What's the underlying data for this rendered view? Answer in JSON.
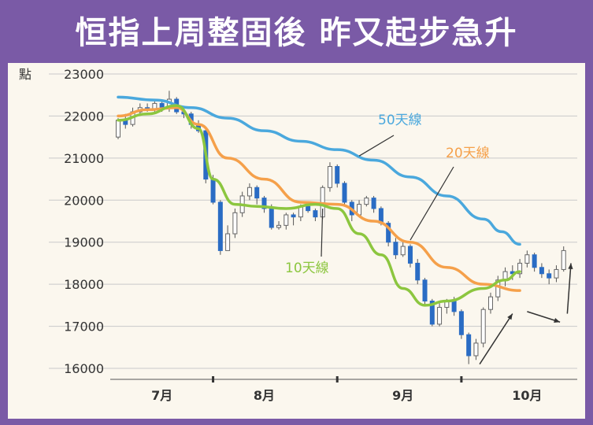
{
  "title": "恒指上周整固後 昨又起步急升",
  "colors": {
    "frame": "#7a5aa6",
    "panel": "#fbf7ee",
    "ma50": "#4aa8dd",
    "ma20": "#f5a04a",
    "ma10": "#8cc63f",
    "candle_up": "#ffffff",
    "candle_down": "#2a6cc4",
    "grid": "#c9c9c9"
  },
  "chart_data": {
    "type": "line",
    "y_unit": "點",
    "ylim": [
      16000,
      23000
    ],
    "yticks": [
      "23000",
      "22000",
      "21000",
      "20000",
      "19000",
      "18000",
      "17000",
      "16000"
    ],
    "x_ticks": [
      "7月",
      "8月",
      "9月",
      "10月"
    ],
    "grid": true,
    "series": [
      {
        "name": "50天線",
        "key": "ma50",
        "values": [
          [
            0,
            22450
          ],
          [
            10,
            22380
          ],
          [
            20,
            22200
          ],
          [
            30,
            21950
          ],
          [
            40,
            21650
          ],
          [
            50,
            21400
          ],
          [
            60,
            21200
          ],
          [
            70,
            20950
          ],
          [
            80,
            20550
          ],
          [
            90,
            20100
          ],
          [
            100,
            19550
          ],
          [
            105,
            19250
          ],
          [
            110,
            18950
          ]
        ]
      },
      {
        "name": "20天線",
        "key": "ma20",
        "values": [
          [
            0,
            22000
          ],
          [
            8,
            22150
          ],
          [
            16,
            22200
          ],
          [
            22,
            21800
          ],
          [
            30,
            21000
          ],
          [
            40,
            20500
          ],
          [
            50,
            19950
          ],
          [
            60,
            19900
          ],
          [
            70,
            19500
          ],
          [
            80,
            19000
          ],
          [
            90,
            18400
          ],
          [
            100,
            18000
          ],
          [
            110,
            17850
          ]
        ]
      },
      {
        "name": "10天線",
        "key": "ma10",
        "values": [
          [
            0,
            21900
          ],
          [
            8,
            22050
          ],
          [
            16,
            22250
          ],
          [
            22,
            21700
          ],
          [
            26,
            20500
          ],
          [
            32,
            19900
          ],
          [
            38,
            19850
          ],
          [
            46,
            19800
          ],
          [
            54,
            19900
          ],
          [
            60,
            19800
          ],
          [
            66,
            19200
          ],
          [
            72,
            18700
          ],
          [
            78,
            17900
          ],
          [
            84,
            17500
          ],
          [
            90,
            17600
          ],
          [
            100,
            17900
          ],
          [
            106,
            18100
          ],
          [
            110,
            18300
          ]
        ]
      }
    ],
    "candles": [
      [
        0,
        21500,
        21900,
        21450,
        21950
      ],
      [
        2,
        21900,
        21800,
        21700,
        22050
      ],
      [
        4,
        21800,
        22100,
        21750,
        22200
      ],
      [
        6,
        22100,
        22200,
        22000,
        22300
      ],
      [
        8,
        22200,
        22150,
        22100,
        22300
      ],
      [
        10,
        22150,
        22300,
        22100,
        22350
      ],
      [
        12,
        22300,
        22200,
        22100,
        22400
      ],
      [
        14,
        22200,
        22400,
        22100,
        22600
      ],
      [
        16,
        22400,
        22100,
        22050,
        22450
      ],
      [
        18,
        22100,
        22050,
        21950,
        22150
      ],
      [
        20,
        22050,
        21800,
        21700,
        22100
      ],
      [
        22,
        21800,
        21650,
        21600,
        21900
      ],
      [
        24,
        21650,
        20500,
        20400,
        21700
      ],
      [
        26,
        20500,
        19950,
        19900,
        20600
      ],
      [
        28,
        19950,
        18800,
        18700,
        20000
      ],
      [
        30,
        18800,
        19200,
        18800,
        19400
      ],
      [
        32,
        19200,
        19700,
        19100,
        19800
      ],
      [
        34,
        19700,
        20100,
        19600,
        20200
      ],
      [
        36,
        20100,
        20300,
        20000,
        20400
      ],
      [
        38,
        20300,
        20050,
        19900,
        20350
      ],
      [
        40,
        20050,
        19800,
        19700,
        20100
      ],
      [
        42,
        19800,
        19350,
        19300,
        19900
      ],
      [
        44,
        19350,
        19400,
        19300,
        19500
      ],
      [
        46,
        19400,
        19650,
        19300,
        19700
      ],
      [
        48,
        19650,
        19600,
        19400,
        19700
      ],
      [
        50,
        19600,
        19850,
        19500,
        19900
      ],
      [
        52,
        19850,
        19750,
        19700,
        19900
      ],
      [
        54,
        19750,
        19600,
        19500,
        19800
      ],
      [
        56,
        19600,
        20300,
        19550,
        20350
      ],
      [
        58,
        20300,
        20800,
        20200,
        20900
      ],
      [
        60,
        20800,
        20400,
        20300,
        20850
      ],
      [
        62,
        20400,
        19950,
        19900,
        20450
      ],
      [
        64,
        19950,
        19650,
        19500,
        20000
      ],
      [
        66,
        19650,
        19900,
        19600,
        20000
      ],
      [
        68,
        19900,
        20050,
        19850,
        20100
      ],
      [
        70,
        20050,
        19800,
        19700,
        20100
      ],
      [
        72,
        19800,
        19450,
        19400,
        19850
      ],
      [
        74,
        19450,
        19000,
        18900,
        19500
      ],
      [
        76,
        19000,
        18700,
        18600,
        19100
      ],
      [
        78,
        18700,
        18900,
        18650,
        19000
      ],
      [
        80,
        18900,
        18500,
        18400,
        18950
      ],
      [
        82,
        18500,
        18100,
        18000,
        18600
      ],
      [
        84,
        18100,
        17600,
        17500,
        18150
      ],
      [
        86,
        17600,
        17050,
        17000,
        17650
      ],
      [
        88,
        17050,
        17450,
        17000,
        17550
      ],
      [
        90,
        17450,
        17600,
        17300,
        17650
      ],
      [
        92,
        17600,
        17350,
        17250,
        17700
      ],
      [
        94,
        17350,
        16800,
        16700,
        17400
      ],
      [
        96,
        16800,
        16300,
        16100,
        16850
      ],
      [
        98,
        16300,
        16600,
        16200,
        16700
      ],
      [
        100,
        16600,
        17400,
        16500,
        17450
      ],
      [
        102,
        17400,
        17700,
        17300,
        17800
      ],
      [
        104,
        17700,
        18100,
        17600,
        18200
      ],
      [
        106,
        18100,
        18300,
        17950,
        18400
      ],
      [
        108,
        18300,
        18250,
        18100,
        18450
      ],
      [
        110,
        18250,
        18500,
        18150,
        18600
      ],
      [
        112,
        18500,
        18700,
        18400,
        18800
      ],
      [
        114,
        18700,
        18400,
        18300,
        18750
      ],
      [
        116,
        18400,
        18250,
        18150,
        18500
      ],
      [
        118,
        18250,
        18150,
        18000,
        18350
      ],
      [
        120,
        18150,
        18350,
        18050,
        18450
      ],
      [
        122,
        18350,
        18800,
        18300,
        18900
      ]
    ]
  }
}
